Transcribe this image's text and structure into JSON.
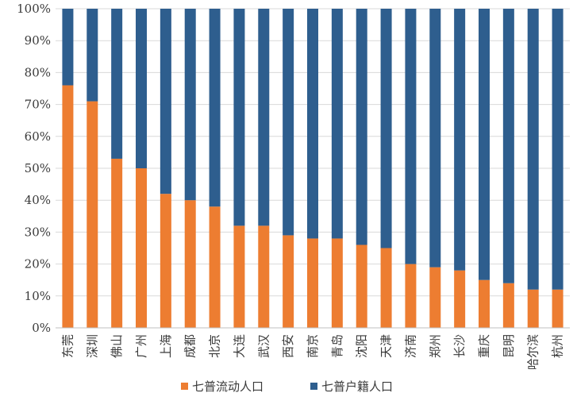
{
  "chart_data": {
    "type": "bar",
    "stacked": true,
    "percent_stacked": true,
    "categories": [
      "东莞",
      "深圳",
      "佛山",
      "广州",
      "上海",
      "成都",
      "北京",
      "大连",
      "武汉",
      "西安",
      "南京",
      "青岛",
      "沈阳",
      "天津",
      "济南",
      "郑州",
      "长沙",
      "重庆",
      "昆明",
      "哈尔滨",
      "杭州"
    ],
    "series": [
      {
        "name": "七普流动人口",
        "color": "#ED7D31",
        "values": [
          76,
          71,
          53,
          50,
          42,
          40,
          38,
          32,
          32,
          29,
          28,
          28,
          26,
          25,
          20,
          19,
          18,
          15,
          14,
          12,
          12
        ]
      },
      {
        "name": "七普户籍人口",
        "color": "#2E5E8E",
        "values": [
          24,
          29,
          47,
          50,
          58,
          60,
          62,
          68,
          68,
          71,
          72,
          72,
          74,
          75,
          80,
          81,
          82,
          85,
          86,
          88,
          88
        ]
      }
    ],
    "yticks": [
      "0%",
      "10%",
      "20%",
      "30%",
      "40%",
      "50%",
      "60%",
      "70%",
      "80%",
      "90%",
      "100%"
    ],
    "ylim": [
      0,
      100
    ],
    "grid": true,
    "legend_position": "bottom"
  }
}
